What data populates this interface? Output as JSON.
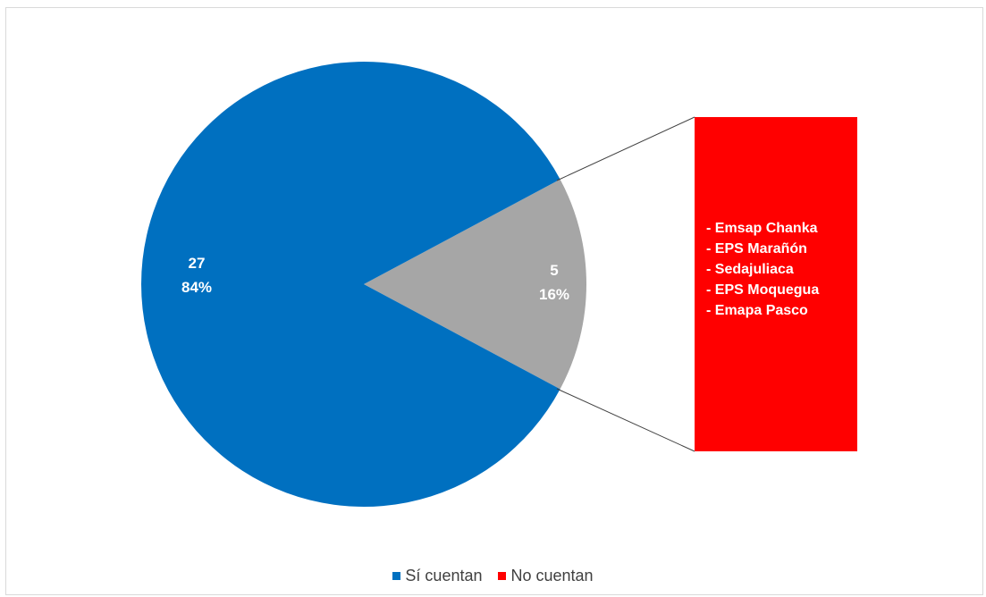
{
  "chart_data": {
    "type": "pie",
    "title": "",
    "slices": [
      {
        "name": "Sí cuentan",
        "value": 27,
        "percent": "84%",
        "color": "#0070c0"
      },
      {
        "name": "No cuentan",
        "value": 5,
        "percent": "16%",
        "color": "#a6a6a6"
      }
    ],
    "callout": {
      "color": "#ff0000",
      "items": [
        "- Emsap Chanka",
        "- EPS Marañón",
        "- Sedajuliaca",
        "- EPS Moquegua",
        "- Emapa Pasco"
      ]
    },
    "legend": {
      "position": "bottom",
      "entries": [
        {
          "label": "Sí cuentan",
          "color": "#0070c0"
        },
        {
          "label": "No cuentan",
          "color": "#ff0000"
        }
      ]
    }
  }
}
